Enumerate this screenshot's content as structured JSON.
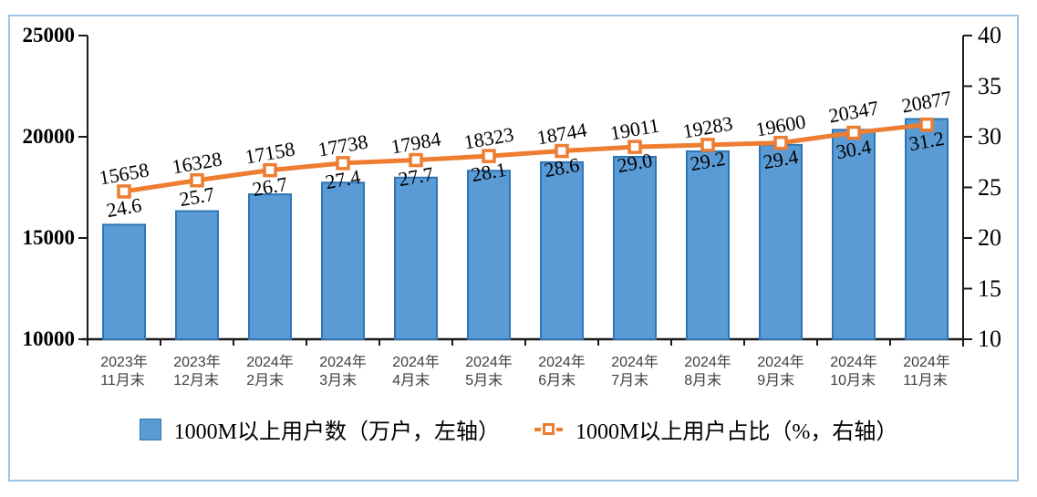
{
  "chart_data": {
    "type": "bar",
    "combo": "bar+line-dual-axis",
    "title": "",
    "categories": [
      [
        "2023年",
        "11月末"
      ],
      [
        "2023年",
        "12月末"
      ],
      [
        "2024年",
        "2月末"
      ],
      [
        "2024年",
        "3月末"
      ],
      [
        "2024年",
        "4月末"
      ],
      [
        "2024年",
        "5月末"
      ],
      [
        "2024年",
        "6月末"
      ],
      [
        "2024年",
        "7月末"
      ],
      [
        "2024年",
        "8月末"
      ],
      [
        "2024年",
        "9月末"
      ],
      [
        "2024年",
        "10月末"
      ],
      [
        "2024年",
        "11月末"
      ]
    ],
    "series": [
      {
        "name": "1000M以上用户数（万户，左轴）",
        "type": "bar",
        "axis": "left",
        "color": "#5B9BD5",
        "border_color": "#2E75B6",
        "values": [
          15658,
          16328,
          17158,
          17738,
          17984,
          18323,
          18744,
          19011,
          19283,
          19600,
          20347,
          20877
        ]
      },
      {
        "name": "1000M以上用户占比（%，右轴）",
        "type": "line",
        "axis": "right",
        "color": "#ED7D31",
        "marker": "square-white-fill",
        "values": [
          24.6,
          25.7,
          26.7,
          27.4,
          27.7,
          28.1,
          28.6,
          29.0,
          29.2,
          29.4,
          30.4,
          31.2
        ]
      }
    ],
    "left_axis": {
      "min": 10000,
      "max": 25000,
      "step": 5000,
      "ticks": [
        25000,
        20000,
        15000,
        10000
      ]
    },
    "right_axis": {
      "min": 10,
      "max": 40,
      "step": 5,
      "ticks": [
        40,
        35,
        30,
        25,
        20,
        15,
        10
      ]
    },
    "grid": false,
    "data_labels": true,
    "legend_position": "bottom",
    "frame_color": "#9DC3E6",
    "axis_color": "#1a1a1a"
  }
}
